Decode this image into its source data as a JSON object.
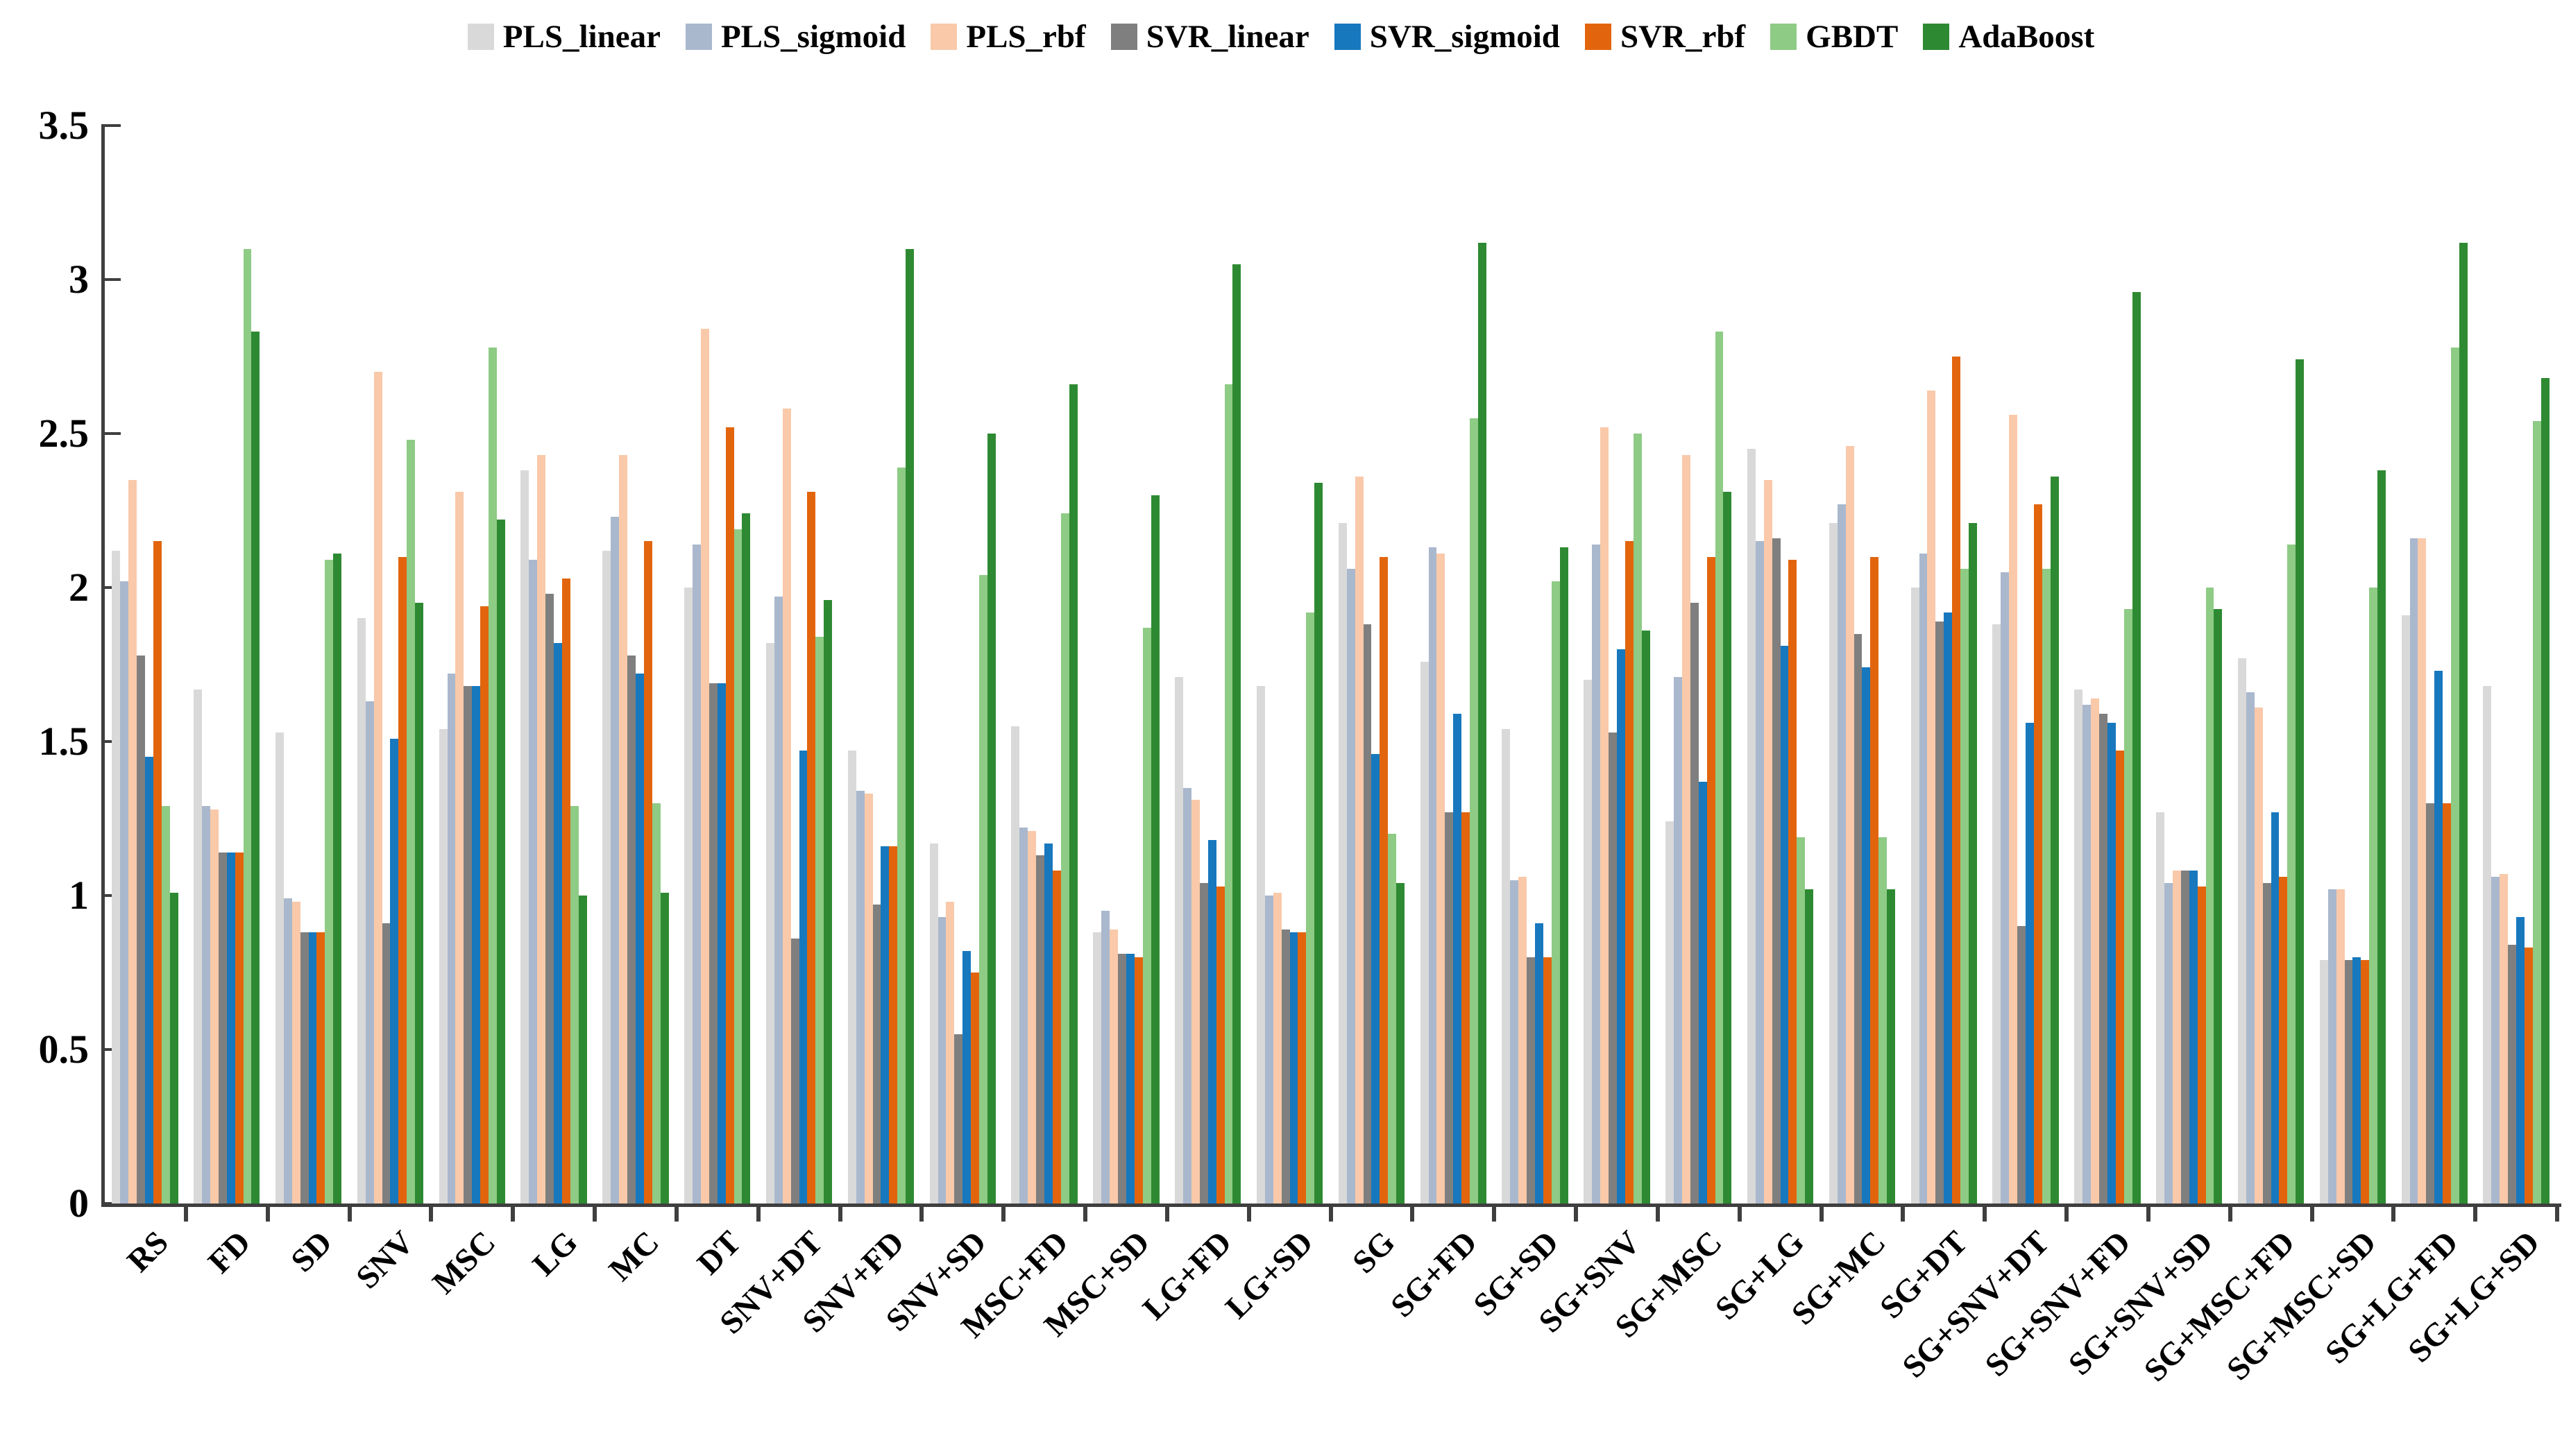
{
  "chart_data": {
    "type": "bar",
    "title": "",
    "xlabel": "",
    "ylabel": "",
    "ylim": [
      0,
      3.5
    ],
    "y_ticks": [
      "0",
      "0.5",
      "1",
      "1.5",
      "2",
      "2.5",
      "3",
      "3.5"
    ],
    "grid": false,
    "legend_position": "top",
    "categories": [
      "RS",
      "FD",
      "SD",
      "SNV",
      "MSC",
      "LG",
      "MC",
      "DT",
      "SNV+DT",
      "SNV+FD",
      "SNV+SD",
      "MSC+FD",
      "MSC+SD",
      "LG+FD",
      "LG+SD",
      "SG",
      "SG+FD",
      "SG+SD",
      "SG+SNV",
      "SG+MSC",
      "SG+LG",
      "SG+MC",
      "SG+DT",
      "SG+SNV+DT",
      "SG+SNV+FD",
      "SG+SNV+SD",
      "SG+MSC+FD",
      "SG+MSC+SD",
      "SG+LG+FD",
      "SG+LG+SD"
    ],
    "series": [
      {
        "name": "PLS_linear",
        "color": "#d9d9d9",
        "values": [
          2.12,
          1.67,
          1.53,
          1.9,
          1.54,
          2.38,
          2.12,
          2.0,
          1.82,
          1.47,
          1.17,
          1.55,
          0.88,
          1.71,
          1.68,
          2.21,
          1.76,
          1.54,
          1.7,
          1.24,
          2.45,
          2.21,
          2.0,
          1.88,
          1.67,
          1.27,
          1.77,
          0.79,
          1.91,
          1.68
        ]
      },
      {
        "name": "PLS_sigmoid",
        "color": "#aab8cd",
        "values": [
          2.02,
          1.29,
          0.99,
          1.63,
          1.72,
          2.09,
          2.23,
          2.14,
          1.97,
          1.34,
          0.93,
          1.22,
          0.95,
          1.35,
          1.0,
          2.06,
          2.13,
          1.05,
          2.14,
          1.71,
          2.15,
          2.27,
          2.11,
          2.05,
          1.62,
          1.04,
          1.66,
          1.02,
          2.16,
          1.06
        ]
      },
      {
        "name": "PLS_rbf",
        "color": "#f9c9a9",
        "values": [
          2.35,
          1.28,
          0.98,
          2.7,
          2.31,
          2.43,
          2.43,
          2.84,
          2.58,
          1.33,
          0.98,
          1.21,
          0.89,
          1.31,
          1.01,
          2.36,
          2.11,
          1.06,
          2.52,
          2.43,
          2.35,
          2.46,
          2.64,
          2.56,
          1.64,
          1.08,
          1.61,
          1.02,
          2.16,
          1.07
        ]
      },
      {
        "name": "SVR_linear",
        "color": "#7f7f7f",
        "values": [
          1.78,
          1.14,
          0.88,
          0.91,
          1.68,
          1.98,
          1.78,
          1.69,
          0.86,
          0.97,
          0.55,
          1.13,
          0.81,
          1.04,
          0.89,
          1.88,
          1.27,
          0.8,
          1.53,
          1.95,
          2.16,
          1.85,
          1.89,
          0.9,
          1.59,
          1.08,
          1.04,
          0.79,
          1.3,
          0.84
        ]
      },
      {
        "name": "SVR_sigmoid",
        "color": "#1778be",
        "values": [
          1.45,
          1.14,
          0.88,
          1.51,
          1.68,
          1.82,
          1.72,
          1.69,
          1.47,
          1.16,
          0.82,
          1.17,
          0.81,
          1.18,
          0.88,
          1.46,
          1.59,
          0.91,
          1.8,
          1.37,
          1.81,
          1.74,
          1.92,
          1.56,
          1.56,
          1.08,
          1.27,
          0.8,
          1.73,
          0.93
        ]
      },
      {
        "name": "SVR_rbf",
        "color": "#e2650e",
        "values": [
          2.15,
          1.14,
          0.88,
          2.1,
          1.94,
          2.03,
          2.15,
          2.52,
          2.31,
          1.16,
          0.75,
          1.08,
          0.8,
          1.03,
          0.88,
          2.1,
          1.27,
          0.8,
          2.15,
          2.1,
          2.09,
          2.1,
          2.75,
          2.27,
          1.47,
          1.03,
          1.06,
          0.79,
          1.3,
          0.83
        ]
      },
      {
        "name": "GBDT",
        "color": "#8ecb85",
        "values": [
          1.29,
          3.1,
          2.09,
          2.48,
          2.78,
          1.29,
          1.3,
          2.19,
          1.84,
          2.39,
          2.04,
          2.24,
          1.87,
          2.66,
          1.92,
          1.2,
          2.55,
          2.02,
          2.5,
          2.83,
          1.19,
          1.19,
          2.06,
          2.06,
          1.93,
          2.0,
          2.14,
          2.0,
          2.78,
          2.54
        ]
      },
      {
        "name": "AdaBoost",
        "color": "#2e8a32",
        "values": [
          1.01,
          2.83,
          2.11,
          1.95,
          2.22,
          1.0,
          1.01,
          2.24,
          1.96,
          3.1,
          2.5,
          2.66,
          2.3,
          3.05,
          2.34,
          1.04,
          3.12,
          2.13,
          1.86,
          2.31,
          1.02,
          1.02,
          2.21,
          2.36,
          2.96,
          1.93,
          2.74,
          2.38,
          3.12,
          2.68
        ]
      }
    ]
  }
}
